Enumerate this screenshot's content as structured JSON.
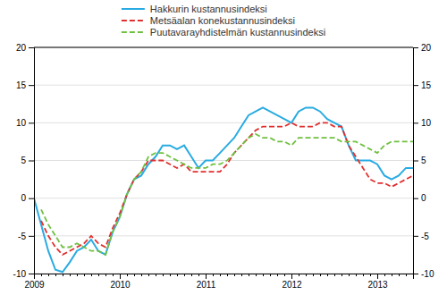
{
  "chart_data": {
    "type": "line",
    "categories": [
      "2009",
      null,
      null,
      null,
      null,
      null,
      null,
      null,
      null,
      null,
      null,
      null,
      "2010",
      null,
      null,
      null,
      null,
      null,
      null,
      null,
      null,
      null,
      null,
      null,
      "2011",
      null,
      null,
      null,
      null,
      null,
      null,
      null,
      null,
      null,
      null,
      null,
      "2012",
      null,
      null,
      null,
      null,
      null,
      null,
      null,
      null,
      null,
      null,
      null,
      "2013",
      null,
      null,
      null,
      null,
      null
    ],
    "series": [
      {
        "name": "Hakkurin kustannusindeksi",
        "color": "#29abe2",
        "line_style": "solid",
        "values": [
          0.0,
          -3.5,
          -7.0,
          -9.5,
          -9.8,
          -8.5,
          -7.0,
          -6.5,
          -5.5,
          -7.0,
          -7.5,
          -4.5,
          -2.5,
          0.5,
          2.5,
          3.0,
          4.5,
          5.5,
          7.0,
          7.0,
          6.5,
          7.0,
          5.5,
          4.0,
          5.0,
          5.0,
          6.0,
          7.0,
          8.0,
          9.5,
          11.0,
          11.5,
          12.0,
          11.5,
          11.0,
          10.5,
          10.0,
          11.5,
          12.0,
          12.0,
          11.5,
          10.5,
          10.0,
          9.5,
          7.0,
          5.0,
          5.0,
          5.0,
          4.5,
          3.0,
          2.5,
          3.0,
          4.0,
          4.0
        ]
      },
      {
        "name": "Metsäalan konekustannusindeksi",
        "color": "#e03030",
        "line_style": "dashed",
        "values": [
          null,
          -3.0,
          -5.0,
          -6.5,
          -7.5,
          -7.0,
          -6.5,
          -6.0,
          -5.0,
          -6.0,
          -6.5,
          -4.0,
          -2.0,
          0.5,
          2.5,
          3.5,
          5.0,
          5.0,
          5.0,
          4.5,
          4.0,
          4.5,
          3.5,
          3.5,
          3.5,
          3.5,
          3.5,
          4.5,
          6.0,
          7.0,
          8.0,
          9.0,
          9.5,
          9.5,
          9.5,
          9.5,
          10.0,
          9.5,
          9.5,
          9.5,
          10.0,
          10.0,
          9.5,
          9.5,
          7.0,
          5.5,
          4.0,
          2.5,
          2.0,
          2.0,
          1.5,
          2.0,
          2.5,
          3.0
        ]
      },
      {
        "name": "Puutavarayhdistelmän kustannusindeksi",
        "color": "#70c040",
        "line_style": "dashed",
        "values": [
          null,
          -1.5,
          -3.5,
          -5.0,
          -6.5,
          -6.5,
          -6.0,
          -6.5,
          -7.0,
          -7.0,
          -7.5,
          -4.5,
          -2.5,
          0.5,
          2.5,
          3.5,
          5.5,
          6.0,
          6.0,
          5.5,
          5.0,
          4.5,
          4.0,
          4.0,
          4.0,
          4.5,
          4.5,
          5.0,
          6.0,
          7.0,
          8.0,
          8.5,
          8.0,
          8.0,
          7.5,
          7.5,
          7.0,
          8.0,
          8.0,
          8.0,
          8.0,
          8.0,
          8.0,
          7.5,
          7.5,
          7.5,
          7.0,
          6.5,
          6.0,
          7.0,
          7.5,
          7.5,
          7.5,
          7.5
        ]
      }
    ],
    "ylim": [
      -10,
      20
    ],
    "yticks": [
      -10,
      -5,
      0,
      5,
      10,
      15,
      20
    ],
    "y2lim": [
      -10,
      20
    ],
    "y2ticks": [
      -10,
      -5,
      0,
      5,
      10,
      15,
      20
    ],
    "grid": true,
    "legend": "top"
  }
}
